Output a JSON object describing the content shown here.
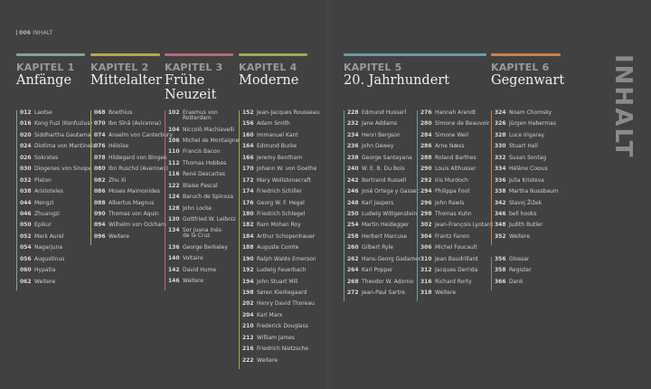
{
  "header": {
    "page": "006",
    "label": "INHALT"
  },
  "side_title": "INHALT",
  "chapters": [
    {
      "kapitel": "KAPITEL 1",
      "title": "Anfänge",
      "color": "#7fa592",
      "entries": [
        [
          "012",
          "Laotse"
        ],
        [
          "016",
          "Kong Fuzi (Konfuzius)"
        ],
        [
          "020",
          "Siddhartha Gautama"
        ],
        [
          "024",
          "Diotima von Mantineia"
        ],
        [
          "026",
          "Sokrates"
        ],
        [
          "030",
          "Diogenes von Sinope"
        ],
        [
          "032",
          "Platon"
        ],
        [
          "038",
          "Aristoteles"
        ],
        [
          "044",
          "Mengzi"
        ],
        [
          "046",
          "Zhuangzi"
        ],
        [
          "050",
          "Epikur"
        ],
        [
          "052",
          "Mark Aurel"
        ],
        [
          "054",
          "Nagarjuna"
        ],
        [
          "056",
          "Augustinus"
        ],
        [
          "060",
          "Hypatia"
        ],
        [
          "062",
          "Weitere"
        ]
      ]
    },
    {
      "kapitel": "KAPITEL 2",
      "title": "Mittelalter",
      "color": "#b3a94c",
      "entries": [
        [
          "068",
          "Boethius"
        ],
        [
          "070",
          "Ibn Sīnā (Avicenna)"
        ],
        [
          "074",
          "Anselm von Canterbury"
        ],
        [
          "076",
          "Héloïse"
        ],
        [
          "078",
          "Hildegard von Bingen"
        ],
        [
          "080",
          "Ibn Ruschd (Averroes)"
        ],
        [
          "082",
          "Zhu Xi"
        ],
        [
          "086",
          "Moses Maimonides"
        ],
        [
          "088",
          "Albertus Magnus"
        ],
        [
          "090",
          "Thomas von Aquin"
        ],
        [
          "094",
          "Wilhelm von Ockham"
        ],
        [
          "096",
          "Weitere"
        ]
      ]
    },
    {
      "kapitel": "KAPITEL 3",
      "title": "Frühe Neuzeit",
      "color": "#b96a76",
      "entries": [
        [
          "102",
          "Erasmus von Rotterdam"
        ],
        [
          "104",
          "Niccolò Machiavelli"
        ],
        [
          "106",
          "Michel de Montaigne"
        ],
        [
          "110",
          "Francis Bacon"
        ],
        [
          "112",
          "Thomas Hobbes"
        ],
        [
          "116",
          "René Descartes"
        ],
        [
          "122",
          "Blaise Pascal"
        ],
        [
          "124",
          "Baruch de Spinoza"
        ],
        [
          "128",
          "John Locke"
        ],
        [
          "130",
          "Gottfried W. Leibniz"
        ],
        [
          "134",
          "Sor Juana Inés de la Cruz"
        ],
        [
          "136",
          "George Berkeley"
        ],
        [
          "140",
          "Voltaire"
        ],
        [
          "142",
          "David Hume"
        ],
        [
          "146",
          "Weitere"
        ]
      ]
    },
    {
      "kapitel": "KAPITEL 4",
      "title": "Moderne",
      "color": "#a2a655",
      "entries": [
        [
          "152",
          "Jean-Jacques Rousseau"
        ],
        [
          "156",
          "Adam Smith"
        ],
        [
          "160",
          "Immanuel Kant"
        ],
        [
          "164",
          "Edmund Burke"
        ],
        [
          "166",
          "Jeremy Bentham"
        ],
        [
          "170",
          "Johann W. von Goethe"
        ],
        [
          "172",
          "Mary Wollstonecraft"
        ],
        [
          "174",
          "Friedrich Schiller"
        ],
        [
          "176",
          "Georg W. F. Hegel"
        ],
        [
          "180",
          "Friedrich Schlegel"
        ],
        [
          "182",
          "Ram Mohan Roy"
        ],
        [
          "184",
          "Arthur Schopenhauer"
        ],
        [
          "188",
          "Auguste Comte"
        ],
        [
          "190",
          "Ralph Waldo Emerson"
        ],
        [
          "192",
          "Ludwig Feuerbach"
        ],
        [
          "194",
          "John Stuart Mill"
        ],
        [
          "198",
          "Søren Kierkegaard"
        ],
        [
          "202",
          "Henry David Thoreau"
        ],
        [
          "204",
          "Karl Marx"
        ],
        [
          "210",
          "Frederick Douglass"
        ],
        [
          "212",
          "William James"
        ],
        [
          "216",
          "Friedrich Nietzsche"
        ],
        [
          "222",
          "Weitere"
        ]
      ]
    },
    {
      "kapitel": "KAPITEL 5",
      "title": "20. Jahrhundert",
      "color": "#6f99a8",
      "entries": [
        [
          "228",
          "Edmund Husserl"
        ],
        [
          "232",
          "Jane Addams"
        ],
        [
          "234",
          "Henri Bergson"
        ],
        [
          "236",
          "John Dewey"
        ],
        [
          "238",
          "George Santayana"
        ],
        [
          "240",
          "W. E. B. Du Bois"
        ],
        [
          "242",
          "Bertrand Russell"
        ],
        [
          "246",
          "José Ortega y Gasset"
        ],
        [
          "248",
          "Karl Jaspers"
        ],
        [
          "250",
          "Ludwig Wittgenstein"
        ],
        [
          "254",
          "Martin Heidegger"
        ],
        [
          "258",
          "Herbert Marcuse"
        ],
        [
          "260",
          "Gilbert Ryle"
        ],
        [
          "262",
          "Hans-Georg Gadamer"
        ],
        [
          "264",
          "Karl Popper"
        ],
        [
          "268",
          "Theodor W. Adorno"
        ],
        [
          "272",
          "Jean-Paul Sartre"
        ]
      ],
      "entries2": [
        [
          "276",
          "Hannah Arendt"
        ],
        [
          "280",
          "Simone de Beauvoir"
        ],
        [
          "284",
          "Simone Weil"
        ],
        [
          "286",
          "Arne Næss"
        ],
        [
          "288",
          "Roland Barthes"
        ],
        [
          "290",
          "Louis Althusser"
        ],
        [
          "292",
          "Iris Murdoch"
        ],
        [
          "294",
          "Philippa Foot"
        ],
        [
          "296",
          "John Rawls"
        ],
        [
          "298",
          "Thomas Kuhn"
        ],
        [
          "302",
          "Jean-François Lyotard"
        ],
        [
          "304",
          "Frantz Fanon"
        ],
        [
          "306",
          "Michel Foucault"
        ],
        [
          "310",
          "Jean Baudrillard"
        ],
        [
          "312",
          "Jacques Derrida"
        ],
        [
          "316",
          "Richard Rorty"
        ],
        [
          "318",
          "Weitere"
        ]
      ]
    },
    {
      "kapitel": "KAPITEL 6",
      "title": "Gegenwart",
      "color": "#c9804a",
      "entries": [
        [
          "324",
          "Noam Chomsky"
        ],
        [
          "326",
          "Jürgen Habermas"
        ],
        [
          "328",
          "Luce Irigaray"
        ],
        [
          "330",
          "Stuart Hall"
        ],
        [
          "332",
          "Susan Sontag"
        ],
        [
          "334",
          "Hélène Cixous"
        ],
        [
          "336",
          "Julia Kristeva"
        ],
        [
          "338",
          "Martha Nussbaum"
        ],
        [
          "342",
          "Slavoj Žižek"
        ],
        [
          "346",
          "bell hooks"
        ],
        [
          "348",
          "Judith Butler"
        ],
        [
          "352",
          "Weitere"
        ]
      ],
      "appendix": [
        [
          "356",
          "Glossar"
        ],
        [
          "358",
          "Register"
        ],
        [
          "366",
          "Dank"
        ]
      ]
    }
  ]
}
